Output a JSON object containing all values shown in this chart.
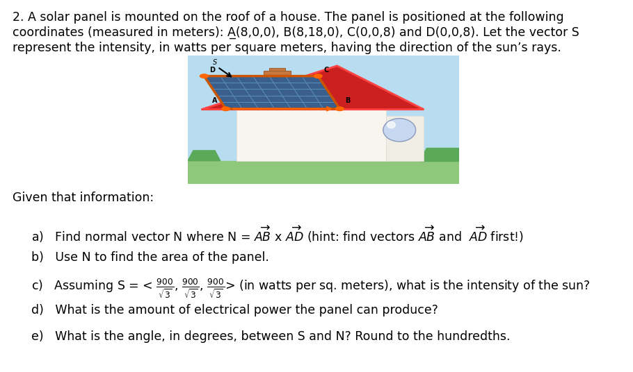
{
  "bg_color": "#ffffff",
  "font_size": 12.5,
  "line1": "2. A solar panel is mounted on the roof of a house. The panel is positioned at the following",
  "line2": "coordinates (measured in meters): A̲(8,0,0), B(8,18,0), C(0,0,8) and D(0,0,8). Let the vector S",
  "line3": "represent the intensity, in watts per square meters, having the direction of the sun’s rays.",
  "given": "Given that information:",
  "item_a": "a)   Find normal vector N where N = ",
  "item_a_math": "$\\overrightarrow{AB}$ x $\\overrightarrow{AD}$ (hint: find vectors $\\overrightarrow{AB}$ and  $\\overrightarrow{AD}$ first!)",
  "item_b": "b)   Use N to find the area of the panel.",
  "item_c_pre": "c)   Assuming S = < ",
  "item_c_math": "$\\frac{900}{\\sqrt{3}}$, $\\frac{900}{\\sqrt{3}}$, $\\frac{900}{\\sqrt{3}}$",
  "item_c_post": "> (in watts per sq. meters), what is the intensity of the sun?",
  "item_d": "d)   What is the amount of electrical power the panel can produce?",
  "item_e": "e)   What is the angle, in degrees, between S and N? Round to the hundredths.",
  "sky_color": "#b8ddf0",
  "grass_color": "#8fc87a",
  "roof_color": "#cc2020",
  "roof_edge_color": "#ff4444",
  "panel_color": "#3a5f8c",
  "panel_grid_color": "#5a8fbf",
  "panel_edge_color": "#cc5500",
  "house_color": "#f8f5ee",
  "chimney_color": "#c87840",
  "window_color": "#c8d8f0",
  "dot_color": "#ff6600",
  "arrow_color": "#ff6600"
}
